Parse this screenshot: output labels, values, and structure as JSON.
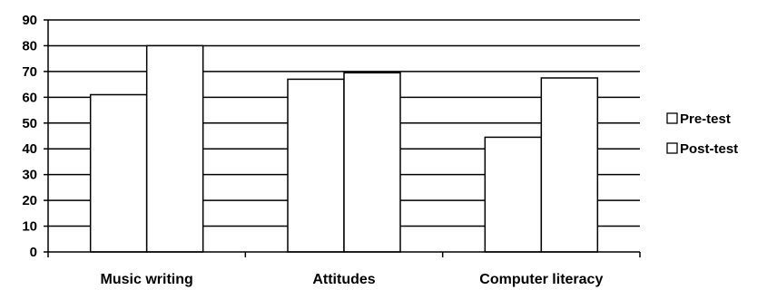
{
  "chart_data": {
    "type": "bar",
    "categories": [
      "Music writing",
      "Attitudes",
      "Computer literacy"
    ],
    "series": [
      {
        "name": "Pre-test",
        "values": [
          61,
          67,
          44.5
        ]
      },
      {
        "name": "Post-test",
        "values": [
          80,
          69.5,
          67.5
        ]
      }
    ],
    "ylim": [
      0,
      90
    ],
    "yticks": [
      0,
      10,
      20,
      30,
      40,
      50,
      60,
      70,
      80,
      90
    ],
    "grid": true,
    "legend": "right",
    "colors": {
      "bar_fill": "#ffffff",
      "stroke": "#000000",
      "gridline": "#000000"
    }
  }
}
